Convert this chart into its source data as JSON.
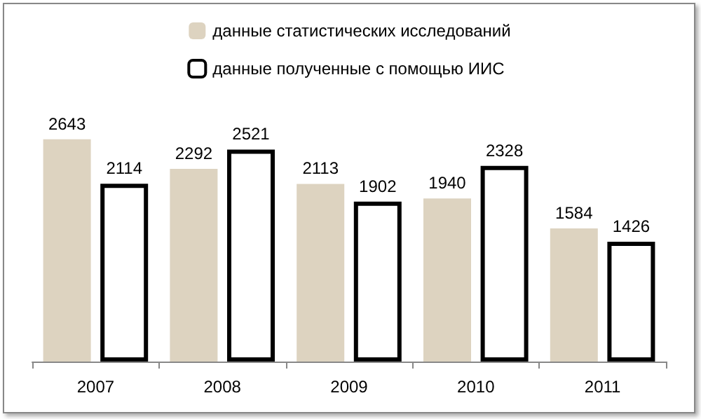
{
  "chart_data": {
    "type": "bar",
    "categories": [
      "2007",
      "2008",
      "2009",
      "2010",
      "2011"
    ],
    "series": [
      {
        "name": "данные статистических исследований",
        "color": "#ddd3c0",
        "values": [
          2643,
          2292,
          2113,
          1940,
          1584
        ]
      },
      {
        "name": "данные полученные с помощью ИИС",
        "color": "#ffffff",
        "values": [
          2114,
          2521,
          1902,
          2328,
          1426
        ]
      }
    ],
    "data_labels": true,
    "legend": "top",
    "tick_labels": "x",
    "grid": false
  }
}
